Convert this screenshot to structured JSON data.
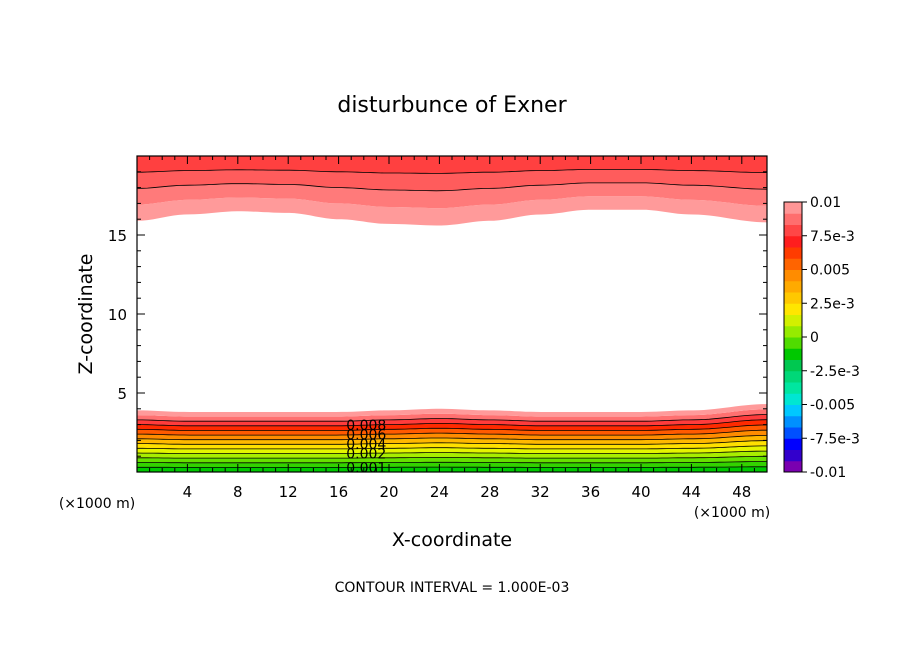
{
  "chart_data": {
    "type": "heatmap",
    "title": "disturbunce of Exner",
    "xlabel": "X-coordinate",
    "ylabel": "Z-coordinate",
    "x_unit": "(×1000 m)",
    "y_unit": "(×1000 m)",
    "xlim": [
      0,
      50
    ],
    "ylim": [
      0,
      20
    ],
    "x_ticks": [
      4,
      8,
      12,
      16,
      20,
      24,
      28,
      32,
      36,
      40,
      44,
      48
    ],
    "y_ticks": [
      5,
      10,
      15
    ],
    "footer": "CONTOUR INTERVAL = 1.000E-03",
    "colorbar": {
      "labels": [
        "0.01",
        "7.5e-3",
        "0.005",
        "2.5e-3",
        "0",
        "-2.5e-3",
        "-0.005",
        "-7.5e-3",
        "-0.01"
      ],
      "min": -0.01,
      "max": 0.01,
      "colors": [
        "#7a00b0",
        "#3300cc",
        "#0000ff",
        "#0050ff",
        "#0090ff",
        "#00c8ff",
        "#00e6d2",
        "#00e6a0",
        "#00d878",
        "#00c850",
        "#00c800",
        "#50dc00",
        "#96eb00",
        "#d2f000",
        "#ffe600",
        "#ffc800",
        "#ffaa00",
        "#ff8c00",
        "#ff6400",
        "#ff3c00",
        "#ff1e1e",
        "#ff4646",
        "#ff6e6e",
        "#ff9696"
      ]
    },
    "contour_labels": [
      "0.008",
      "0.006",
      "0.004",
      "0.002",
      "0.001"
    ],
    "bottom_layer_z_top": [
      3.9,
      3.8,
      3.8,
      3.8,
      3.8,
      3.9,
      4.0,
      3.9,
      3.8,
      3.8,
      3.8,
      3.9,
      4.3
    ],
    "top_layer_z_bottom": [
      15.9,
      16.3,
      16.5,
      16.4,
      16.0,
      15.7,
      15.6,
      15.9,
      16.3,
      16.6,
      16.6,
      16.3,
      15.8
    ],
    "profile_x": [
      0,
      4,
      8,
      12,
      16,
      20,
      24,
      28,
      32,
      36,
      40,
      44,
      50
    ]
  }
}
